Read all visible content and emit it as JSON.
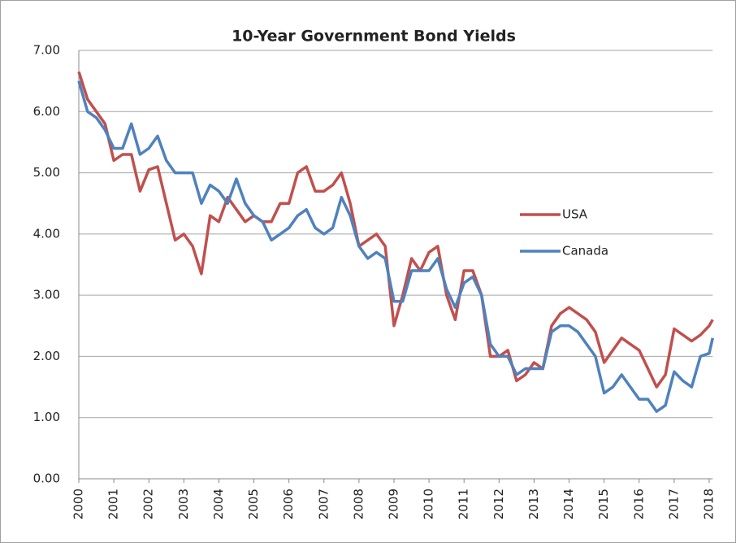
{
  "chart_data": {
    "type": "line",
    "title": "10-Year Government Bond Yields",
    "x": [
      2000,
      2000.25,
      2000.5,
      2000.75,
      2001,
      2001.25,
      2001.5,
      2001.75,
      2002,
      2002.25,
      2002.5,
      2002.75,
      2003,
      2003.25,
      2003.5,
      2003.75,
      2004,
      2004.25,
      2004.5,
      2004.75,
      2005,
      2005.25,
      2005.5,
      2005.75,
      2006,
      2006.25,
      2006.5,
      2006.75,
      2007,
      2007.25,
      2007.5,
      2007.75,
      2008,
      2008.25,
      2008.5,
      2008.75,
      2009,
      2009.25,
      2009.5,
      2009.75,
      2010,
      2010.25,
      2010.5,
      2010.75,
      2011,
      2011.25,
      2011.5,
      2011.75,
      2012,
      2012.25,
      2012.5,
      2012.75,
      2013,
      2013.25,
      2013.5,
      2013.75,
      2014,
      2014.25,
      2014.5,
      2014.75,
      2015,
      2015.25,
      2015.5,
      2015.75,
      2016,
      2016.25,
      2016.5,
      2016.75,
      2017,
      2017.25,
      2017.5,
      2017.75,
      2018,
      2018.1
    ],
    "series": [
      {
        "name": "USA",
        "color": "#c0504d",
        "values": [
          6.65,
          6.2,
          6.0,
          5.8,
          5.2,
          5.3,
          5.3,
          4.7,
          5.05,
          5.1,
          4.5,
          3.9,
          4.0,
          3.8,
          3.35,
          4.3,
          4.2,
          4.6,
          4.4,
          4.2,
          4.3,
          4.2,
          4.2,
          4.5,
          4.5,
          5.0,
          5.1,
          4.7,
          4.7,
          4.8,
          5.0,
          4.5,
          3.8,
          3.9,
          4.0,
          3.8,
          2.5,
          3.0,
          3.6,
          3.4,
          3.7,
          3.8,
          3.0,
          2.6,
          3.4,
          3.4,
          3.0,
          2.0,
          2.0,
          2.1,
          1.6,
          1.7,
          1.9,
          1.8,
          2.5,
          2.7,
          2.8,
          2.7,
          2.6,
          2.4,
          1.9,
          2.1,
          2.3,
          2.2,
          2.1,
          1.8,
          1.5,
          1.7,
          2.45,
          2.35,
          2.25,
          2.35,
          2.5,
          2.6
        ]
      },
      {
        "name": "Canada",
        "color": "#4f81bd",
        "values": [
          6.5,
          6.0,
          5.9,
          5.7,
          5.4,
          5.4,
          5.8,
          5.3,
          5.4,
          5.6,
          5.2,
          5.0,
          5.0,
          5.0,
          4.5,
          4.8,
          4.7,
          4.5,
          4.9,
          4.5,
          4.3,
          4.2,
          3.9,
          4.0,
          4.1,
          4.3,
          4.4,
          4.1,
          4.0,
          4.1,
          4.6,
          4.3,
          3.8,
          3.6,
          3.7,
          3.6,
          2.9,
          2.9,
          3.4,
          3.4,
          3.4,
          3.6,
          3.1,
          2.8,
          3.2,
          3.3,
          3.0,
          2.2,
          2.0,
          2.0,
          1.7,
          1.8,
          1.8,
          1.8,
          2.4,
          2.5,
          2.5,
          2.4,
          2.2,
          2.0,
          1.4,
          1.5,
          1.7,
          1.5,
          1.3,
          1.3,
          1.1,
          1.2,
          1.75,
          1.6,
          1.5,
          2.0,
          2.05,
          2.3
        ]
      }
    ],
    "xlim": [
      2000,
      2018.1
    ],
    "xticks": [
      2000,
      2001,
      2002,
      2003,
      2004,
      2005,
      2006,
      2007,
      2008,
      2009,
      2010,
      2011,
      2012,
      2013,
      2014,
      2015,
      2016,
      2017,
      2018
    ],
    "ylim": [
      0,
      7
    ],
    "yticks": [
      {
        "value": 0,
        "label": "0.00"
      },
      {
        "value": 1,
        "label": "1.00"
      },
      {
        "value": 2,
        "label": "2.00"
      },
      {
        "value": 3,
        "label": "3.00"
      },
      {
        "value": 4,
        "label": "4.00"
      },
      {
        "value": 5,
        "label": "5.00"
      },
      {
        "value": 6,
        "label": "6.00"
      },
      {
        "value": 7,
        "label": "7.00"
      }
    ],
    "grid": true,
    "legend": "right"
  }
}
